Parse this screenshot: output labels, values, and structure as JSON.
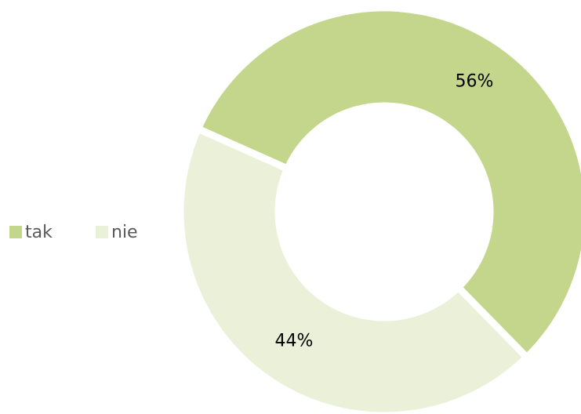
{
  "chart_data": {
    "type": "donut",
    "categories": [
      "tak",
      "nie"
    ],
    "values": [
      56,
      44
    ],
    "value_labels": [
      "56%",
      "44%"
    ],
    "colors": [
      "#c4d68c",
      "#ebf1d9"
    ],
    "legend": "left"
  }
}
